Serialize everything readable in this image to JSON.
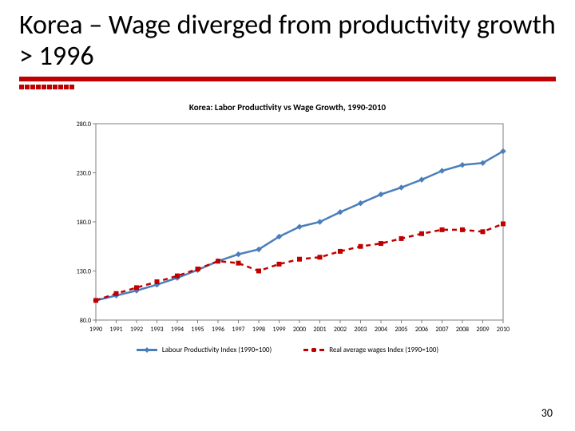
{
  "slide": {
    "title": "Korea – Wage diverged from productivity growth > 1996",
    "page_number": "30"
  },
  "chart": {
    "type": "line",
    "title": "Korea: Labor Productivity vs Wage Growth, 1990-2010",
    "title_fontsize": 11,
    "x_labels": [
      "1990",
      "1991",
      "1992",
      "1993",
      "1994",
      "1995",
      "1996",
      "1997",
      "1998",
      "1999",
      "2000",
      "2001",
      "2002",
      "2003",
      "2004",
      "2005",
      "2006",
      "2007",
      "2008",
      "2009",
      "2010"
    ],
    "ylim": [
      80,
      280
    ],
    "ytick_step": 50,
    "y_ticks": [
      "80.0",
      "130.0",
      "180.0",
      "230.0",
      "280.0"
    ],
    "x_label_fontsize": 8,
    "y_label_fontsize": 8,
    "plot_border_color": "#7f7f7f",
    "background_color": "#ffffff",
    "series": [
      {
        "name": "Labour Productivity Index (1990=100)",
        "color": "#4a7ebb",
        "line_width": 2.5,
        "dash": "solid",
        "marker": "diamond",
        "values": [
          100,
          105,
          110,
          116,
          123,
          131,
          140,
          147,
          152,
          165,
          175,
          180,
          190,
          199,
          208,
          215,
          223,
          232,
          238,
          240,
          252
        ]
      },
      {
        "name": "Real average wages Index (1990=100)",
        "color": "#c00000",
        "line_width": 2.5,
        "dash": "dashed",
        "marker": "square",
        "values": [
          100,
          107,
          113,
          119,
          125,
          132,
          140,
          138,
          130,
          137,
          142,
          144,
          150,
          155,
          158,
          163,
          168,
          172,
          172,
          170,
          178
        ]
      }
    ],
    "legend_fontsize": 9
  },
  "accent": {
    "red": "#c00000"
  }
}
